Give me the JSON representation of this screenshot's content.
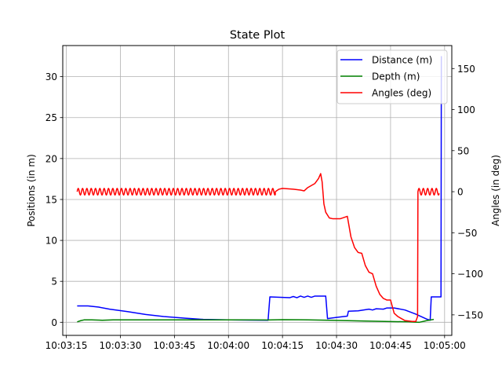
{
  "chart_data": {
    "type": "line",
    "title": "State Plot",
    "xlabel": "",
    "ylabel_left": "Positions (in m)",
    "ylabel_right": "Angles (in deg)",
    "grid": true,
    "legend_position": "top-right",
    "x_unit": "time",
    "xlim": [
      "10:03:14",
      "10:05:02"
    ],
    "ylim_left": [
      -1.6,
      33.8
    ],
    "ylim_right": [
      -175,
      178
    ],
    "x_ticks": [
      "10:03:15",
      "10:03:30",
      "10:03:45",
      "10:04:00",
      "10:04:15",
      "10:04:30",
      "10:04:45",
      "10:05:00"
    ],
    "y_ticks_left": [
      0,
      5,
      10,
      15,
      20,
      25,
      30
    ],
    "y_ticks_right": [
      -150,
      -100,
      -50,
      0,
      50,
      100,
      150
    ],
    "series": [
      {
        "name": "Distance (m)",
        "color": "#0000ff",
        "axis": "left",
        "points": [
          [
            "10:03:18",
            2.0
          ],
          [
            "10:03:21",
            2.0
          ],
          [
            "10:03:24",
            1.85
          ],
          [
            "10:03:27",
            1.6
          ],
          [
            "10:03:32",
            1.3
          ],
          [
            "10:03:37",
            0.95
          ],
          [
            "10:03:42",
            0.7
          ],
          [
            "10:03:48",
            0.5
          ],
          [
            "10:03:53",
            0.35
          ],
          [
            "10:04:00",
            0.3
          ],
          [
            "10:04:11",
            0.25
          ],
          [
            "10:04:11.5",
            3.1
          ],
          [
            "10:04:17",
            3.0
          ],
          [
            "10:04:18",
            3.15
          ],
          [
            "10:04:19",
            3.0
          ],
          [
            "10:04:20",
            3.2
          ],
          [
            "10:04:21",
            3.05
          ],
          [
            "10:04:22",
            3.2
          ],
          [
            "10:04:23",
            3.05
          ],
          [
            "10:04:24",
            3.2
          ],
          [
            "10:04:27",
            3.2
          ],
          [
            "10:04:27.5",
            0.45
          ],
          [
            "10:04:30",
            0.6
          ],
          [
            "10:04:32",
            0.7
          ],
          [
            "10:04:33",
            0.75
          ],
          [
            "10:04:33.3",
            1.35
          ],
          [
            "10:04:36",
            1.4
          ],
          [
            "10:04:39",
            1.6
          ],
          [
            "10:04:40",
            1.5
          ],
          [
            "10:04:41",
            1.65
          ],
          [
            "10:04:43",
            1.6
          ],
          [
            "10:04:44",
            1.75
          ],
          [
            "10:04:46",
            1.75
          ],
          [
            "10:04:49",
            1.5
          ],
          [
            "10:04:52",
            1.0
          ],
          [
            "10:04:55",
            0.4
          ],
          [
            "10:04:56",
            0.25
          ],
          [
            "10:04:56.3",
            3.1
          ],
          [
            "10:04:59",
            3.1
          ],
          [
            "10:04:59.1",
            32.5
          ]
        ]
      },
      {
        "name": "Depth (m)",
        "color": "#008000",
        "axis": "left",
        "points": [
          [
            "10:03:18",
            0.05
          ],
          [
            "10:03:19",
            0.2
          ],
          [
            "10:03:20",
            0.3
          ],
          [
            "10:03:22",
            0.3
          ],
          [
            "10:03:25",
            0.25
          ],
          [
            "10:03:28",
            0.3
          ],
          [
            "10:03:40",
            0.3
          ],
          [
            "10:04:00",
            0.3
          ],
          [
            "10:04:11",
            0.28
          ],
          [
            "10:04:15",
            0.32
          ],
          [
            "10:04:22",
            0.3
          ],
          [
            "10:04:28",
            0.25
          ],
          [
            "10:04:38",
            0.15
          ],
          [
            "10:04:50",
            0.05
          ],
          [
            "10:04:53",
            0.0
          ],
          [
            "10:04:55",
            0.2
          ],
          [
            "10:04:57",
            0.35
          ]
        ]
      },
      {
        "name": "Angles (deg)",
        "color": "#ff0000",
        "axis": "right",
        "segments": [
          {
            "from": "10:03:18",
            "to": "10:04:13",
            "oscillation_center": 0,
            "oscillation_amplitude": 4,
            "oscillation_period_s": 1.2
          },
          {
            "points": [
              [
                "10:04:13",
                0
              ],
              [
                "10:04:14",
                3
              ],
              [
                "10:04:15",
                4
              ],
              [
                "10:04:18",
                3
              ],
              [
                "10:04:20",
                2
              ],
              [
                "10:04:21",
                1
              ],
              [
                "10:04:22",
                5
              ],
              [
                "10:04:24",
                10
              ],
              [
                "10:04:25",
                16
              ],
              [
                "10:04:25.6",
                22
              ],
              [
                "10:04:26",
                12
              ],
              [
                "10:04:26.5",
                -15
              ],
              [
                "10:04:27",
                -25
              ],
              [
                "10:04:28",
                -32
              ],
              [
                "10:04:29",
                -33
              ],
              [
                "10:04:31",
                -33
              ],
              [
                "10:04:33",
                -30
              ],
              [
                "10:04:34",
                -55
              ],
              [
                "10:04:35",
                -68
              ],
              [
                "10:04:36",
                -74
              ],
              [
                "10:04:37",
                -75
              ],
              [
                "10:04:38",
                -90
              ],
              [
                "10:04:39",
                -98
              ],
              [
                "10:04:40",
                -100
              ],
              [
                "10:04:41",
                -115
              ],
              [
                "10:04:42",
                -125
              ],
              [
                "10:04:43",
                -130
              ],
              [
                "10:04:44",
                -132
              ],
              [
                "10:04:45",
                -132
              ],
              [
                "10:04:46",
                -148
              ],
              [
                "10:04:47",
                -152
              ],
              [
                "10:04:49",
                -157
              ],
              [
                "10:04:51",
                -158
              ],
              [
                "10:04:52",
                -158
              ],
              [
                "10:04:52.5",
                -152
              ],
              [
                "10:04:52.6",
                0
              ]
            ]
          },
          {
            "from": "10:04:52.6",
            "to": "10:04:58.5",
            "oscillation_center": 0,
            "oscillation_amplitude": 4,
            "oscillation_period_s": 1.2
          }
        ]
      }
    ]
  }
}
